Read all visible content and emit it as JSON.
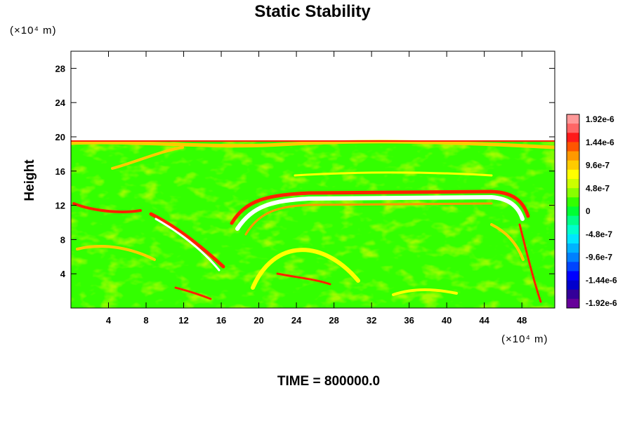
{
  "chart_data": {
    "type": "heatmap",
    "title": "Static Stability",
    "ylabel": "Height",
    "y_unit": "(×10⁴ m)",
    "x_unit": "(×10⁴ m)",
    "xlim": [
      0,
      51.5
    ],
    "ylim": [
      0,
      30
    ],
    "xticks": [
      "4",
      "8",
      "12",
      "16",
      "20",
      "24",
      "28",
      "32",
      "36",
      "40",
      "44",
      "48"
    ],
    "yticks": [
      "4",
      "8",
      "12",
      "16",
      "20",
      "24",
      "28"
    ],
    "grid": false,
    "colorbar": {
      "placement": "right",
      "labels": [
        "1.92e-6",
        "1.44e-6",
        "9.6e-7",
        "4.8e-7",
        "0",
        "-4.8e-7",
        "-9.6e-7",
        "-1.44e-6",
        "-1.92e-6"
      ],
      "colors": [
        "#ff9999",
        "#ff6666",
        "#ff1a1a",
        "#ff5500",
        "#ff9900",
        "#ffcc00",
        "#ffff00",
        "#ccff00",
        "#88ff00",
        "#33ff00",
        "#00ff33",
        "#00ff88",
        "#00ffcc",
        "#00e6ff",
        "#00b3ff",
        "#0080ff",
        "#0044ff",
        "#0000ff",
        "#0000cc",
        "#330099",
        "#660099"
      ]
    },
    "field_description_values": {
      "background_value": 0,
      "data_top_height": 19.6,
      "features": [
        {
          "kind": "stable_band",
          "x": [
            22,
            47
          ],
          "y": 13.4
        },
        {
          "kind": "diagonal_band",
          "x": [
            9,
            17
          ],
          "y": [
            11,
            6
          ]
        },
        {
          "kind": "arch",
          "x": [
            17,
            24
          ],
          "y": [
            7,
            12.5
          ]
        }
      ]
    },
    "footer": "TIME = 800000.0"
  }
}
